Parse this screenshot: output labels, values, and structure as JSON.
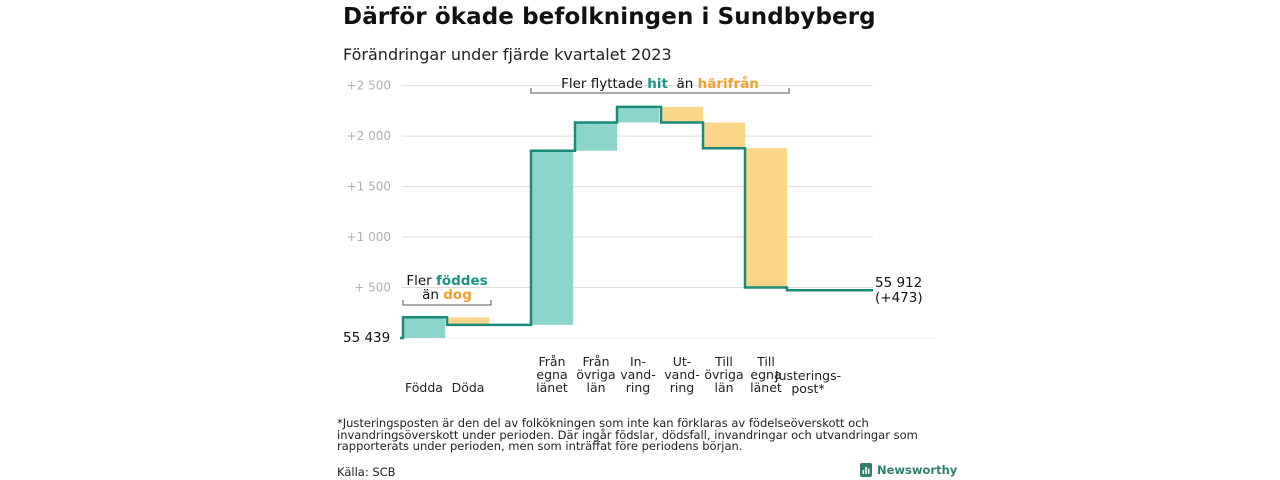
{
  "header": {
    "title": "Därför ökade befolkningen i Sundbyberg",
    "subtitle": "Förändringar under fjärde kvartalet 2023"
  },
  "colors": {
    "line": "#1a8a7a",
    "increase": "#8dd4cb",
    "decrease": "#fad58a",
    "teal_text": "#1a9385",
    "orange_text": "#f0a030",
    "grid": "#dddddd",
    "tick": "#b0b0b0"
  },
  "chart_data": {
    "type": "waterfall",
    "start": {
      "label": "55  439",
      "value": 55439
    },
    "end": {
      "label": "55 912",
      "change_label": "(+473)",
      "value": 55912
    },
    "y_ticks": [
      {
        "value": 55939,
        "label": "+   500"
      },
      {
        "value": 56439,
        "label": "+1  000"
      },
      {
        "value": 56939,
        "label": "+1  500"
      },
      {
        "value": 57439,
        "label": "+2  000"
      },
      {
        "value": 57939,
        "label": "+2  500"
      }
    ],
    "ylim": [
      55439,
      57985
    ],
    "steps": [
      {
        "label_lines": [
          "Födda"
        ],
        "change": 205
      },
      {
        "label_lines": [
          "Döda"
        ],
        "change": -75
      },
      {
        "label_lines": [
          "Från",
          "egna",
          "länet"
        ],
        "change": 1725
      },
      {
        "label_lines": [
          "Från",
          "övriga",
          "län"
        ],
        "change": 280
      },
      {
        "label_lines": [
          "In-",
          "vand-",
          "ring"
        ],
        "change": 155
      },
      {
        "label_lines": [
          "Ut-",
          "vand-",
          "ring"
        ],
        "change": -155
      },
      {
        "label_lines": [
          "Till",
          "övriga",
          "län"
        ],
        "change": -255
      },
      {
        "label_lines": [
          "Till",
          "egna",
          "länet"
        ],
        "change": -1380
      },
      {
        "label_lines": [
          "Justerings-",
          "post*"
        ],
        "change": -27
      }
    ],
    "annotations": {
      "births": {
        "line1": "Fler ",
        "line1_hl": "föddes",
        "line2_hl": "dog",
        "line2_post": "än "
      },
      "moves": {
        "pre": "Fler flyttade ",
        "hl1": "hit",
        "mid": "  än ",
        "hl2": "härifrån"
      }
    }
  },
  "footnote": "*Justeringsposten är den del av folkökningen som inte kan förklaras av födelseöverskott och invandringsöverskott under perioden. Där ingår födslar, dödsfall, invandringar och utvandringar som rapporterats under perioden, men som inträffat före periodens början.",
  "source": "Källa: SCB",
  "brand": {
    "name": "Newsworthy",
    "logo_icon": "bar-chart-logo-icon"
  }
}
